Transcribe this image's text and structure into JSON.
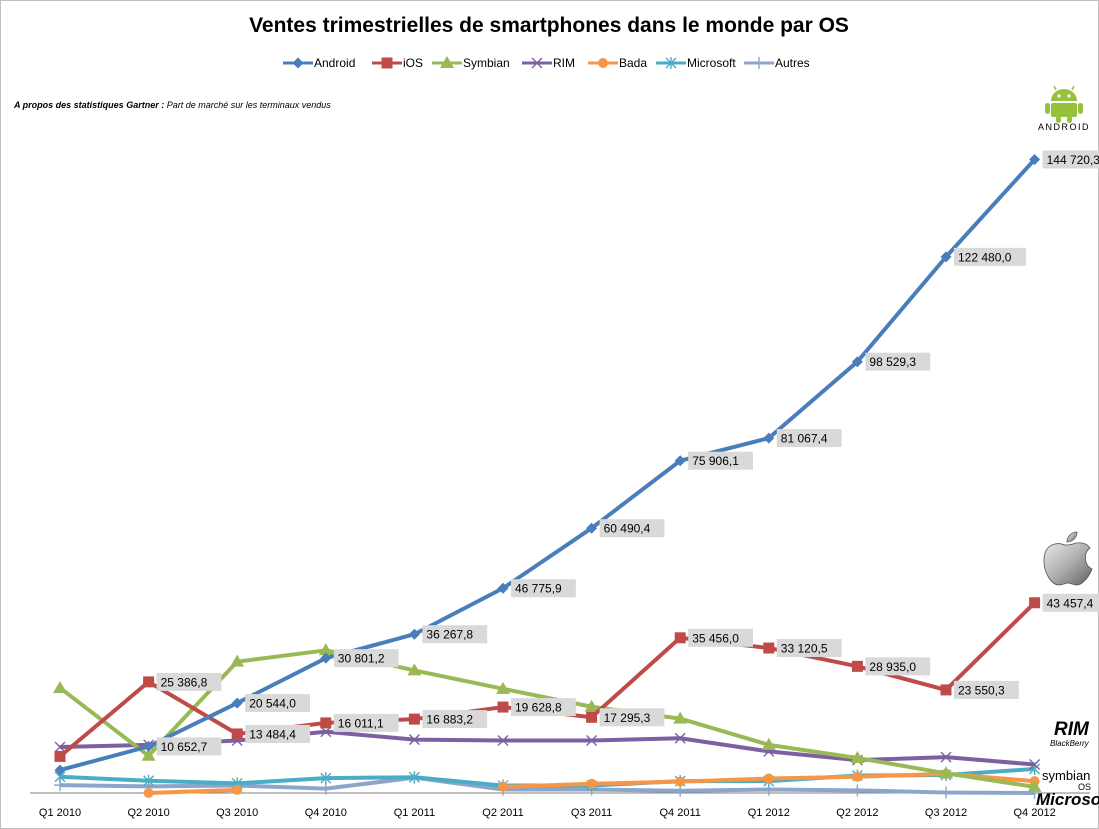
{
  "chart_data": {
    "type": "line",
    "title": "Ventes trimestrielles de smartphones dans le monde par OS",
    "note_bold": "A propos des statistiques Gartner :",
    "note_text": "Part de marché sur les terminaux vendus",
    "categories": [
      "Q1 2010",
      "Q2 2010",
      "Q3 2010",
      "Q4 2010",
      "Q1 2011",
      "Q2 2011",
      "Q3 2011",
      "Q4 2011",
      "Q1 2012",
      "Q2 2012",
      "Q3 2012",
      "Q4 2012"
    ],
    "ylim": [
      0,
      155000
    ],
    "grid": false,
    "legend_position": "top",
    "series": [
      {
        "name": "Android",
        "color": "#4a7ebb",
        "marker": "diamond",
        "values": [
          5227,
          10652.7,
          20544.0,
          30801.2,
          36267.8,
          46775.9,
          60490.4,
          75906.1,
          81067.4,
          98529.3,
          122480.0,
          144720.3
        ],
        "labels": [
          "",
          "10 652,7",
          "20 544,0",
          "30 801,2",
          "36 267,8",
          "46 775,9",
          "60 490,4",
          "75 906,1",
          "81 067,4",
          "98 529,3",
          "122 480,0",
          "144 720,3"
        ]
      },
      {
        "name": "iOS",
        "color": "#be4b48",
        "marker": "square",
        "values": [
          8360,
          25386.8,
          13484.4,
          16011.1,
          16883.2,
          19628.8,
          17295.3,
          35456.0,
          33120.5,
          28935.0,
          23550.3,
          43457.4
        ],
        "labels": [
          "",
          "25 386,8",
          "13 484,4",
          "16 011,1",
          "16 883,2",
          "19 628,8",
          "17 295,3",
          "35 456,0",
          "33 120,5",
          "28 935,0",
          "23 550,3",
          "43 457,4"
        ]
      },
      {
        "name": "Symbian",
        "color": "#98b954",
        "marker": "triangle",
        "values": [
          24000,
          8500,
          30000,
          32600,
          28000,
          23800,
          19700,
          17000,
          11000,
          8000,
          4500,
          1400
        ],
        "labels": []
      },
      {
        "name": "RIM",
        "color": "#7d60a0",
        "marker": "x",
        "values": [
          10500,
          11000,
          12000,
          14000,
          12200,
          12000,
          12000,
          12500,
          9500,
          7500,
          8200,
          6500
        ],
        "labels": []
      },
      {
        "name": "Bada",
        "color": "#f79646",
        "marker": "circle",
        "values": [
          null,
          0,
          700,
          null,
          null,
          1400,
          2100,
          2600,
          3300,
          3700,
          4400,
          2700
        ],
        "labels": []
      },
      {
        "name": "Microsoft",
        "color": "#4bacc6",
        "marker": "star",
        "values": [
          3700,
          2800,
          2200,
          3400,
          3600,
          1700,
          1700,
          2700,
          2700,
          4000,
          4100,
          5500
        ],
        "labels": []
      },
      {
        "name": "Autres",
        "color": "#8ea5cb",
        "marker": "plus",
        "values": [
          1800,
          1500,
          1700,
          1000,
          3500,
          800,
          800,
          500,
          800,
          600,
          100,
          0
        ],
        "labels": []
      }
    ]
  },
  "logos": {
    "android": "ANDROID",
    "rim_main": "RIM",
    "rim_sub": "BlackBerry",
    "symbian_main": "symbian",
    "symbian_sub": "OS",
    "microsoft": "Microsoft"
  }
}
